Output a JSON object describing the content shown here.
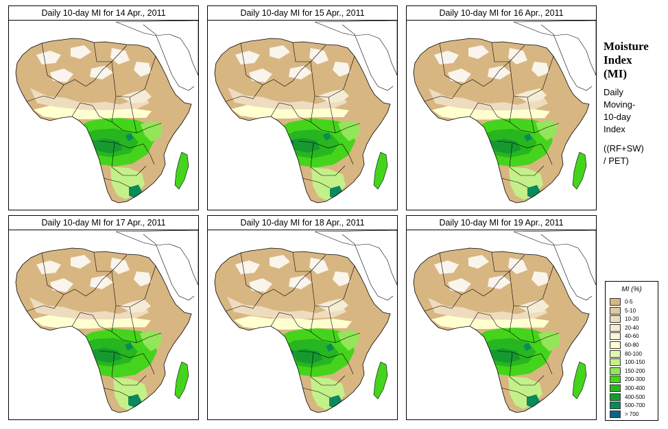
{
  "panels": [
    {
      "title": "Daily 10-day MI for  14 Apr., 2011"
    },
    {
      "title": "Daily 10-day MI for  15 Apr., 2011"
    },
    {
      "title": "Daily 10-day MI for  16 Apr., 2011"
    },
    {
      "title": "Daily 10-day MI for  17 Apr., 2011"
    },
    {
      "title": "Daily 10-day MI for  18 Apr., 2011"
    },
    {
      "title": "Daily 10-day MI for  19 Apr., 2011"
    }
  ],
  "side": {
    "title": "Moisture\nIndex\n(MI)",
    "description": "Daily\nMoving-\n10-day\nIndex",
    "formula": "((RF+SW)\n  / PET)"
  },
  "legend": {
    "title": "MI (%)",
    "items": [
      {
        "label": "0-5",
        "color": "#d8b682"
      },
      {
        "label": "5-10",
        "color": "#e2c89f"
      },
      {
        "label": "10-20",
        "color": "#eedcbf"
      },
      {
        "label": "20-40",
        "color": "#f5ecd5"
      },
      {
        "label": "40-60",
        "color": "#fbf7dc"
      },
      {
        "label": "60-80",
        "color": "#ffffd0"
      },
      {
        "label": "80-100",
        "color": "#e2f7b0"
      },
      {
        "label": "100-150",
        "color": "#c4f08a"
      },
      {
        "label": "150-200",
        "color": "#93e65a"
      },
      {
        "label": "200-300",
        "color": "#45d41c"
      },
      {
        "label": "300-400",
        "color": "#27b61f"
      },
      {
        "label": "400-500",
        "color": "#169a30"
      },
      {
        "label": "500-700",
        "color": "#0a8a5a"
      },
      {
        "label": "> 700",
        "color": "#0d6488"
      }
    ]
  }
}
